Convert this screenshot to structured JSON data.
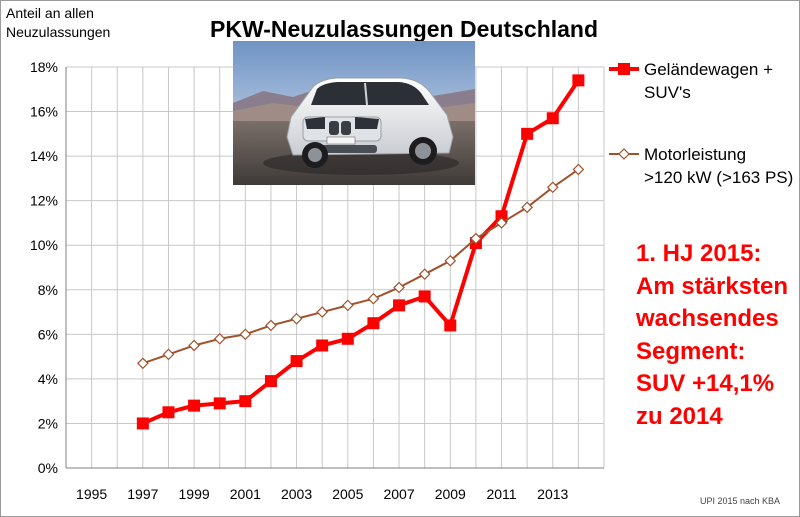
{
  "chart_data": {
    "type": "line",
    "title": "PKW-Neuzulassungen Deutschland",
    "ylabel": "Anteil an allen\nNeuzulassungen",
    "xlabel": "",
    "ylim": [
      0,
      18
    ],
    "y_ticks": [
      "0%",
      "2%",
      "4%",
      "6%",
      "8%",
      "10%",
      "12%",
      "14%",
      "16%",
      "18%"
    ],
    "y_tick_values": [
      0,
      2,
      4,
      6,
      8,
      10,
      12,
      14,
      16,
      18
    ],
    "xlim": [
      1994,
      2015
    ],
    "x_ticks": [
      "1995",
      "1997",
      "1999",
      "2001",
      "2003",
      "2005",
      "2007",
      "2009",
      "2011",
      "2013"
    ],
    "x_tick_values": [
      1995,
      1997,
      1999,
      2001,
      2003,
      2005,
      2007,
      2009,
      2011,
      2013
    ],
    "grid": true,
    "legend_position": "right",
    "series": [
      {
        "name": "Geländewagen +\nSUV's",
        "color": "#ff0000",
        "marker": "square",
        "x": [
          1997,
          1998,
          1999,
          2000,
          2001,
          2002,
          2003,
          2004,
          2005,
          2006,
          2007,
          2008,
          2009,
          2010,
          2011,
          2012,
          2013,
          2014
        ],
        "values": [
          2.0,
          2.5,
          2.8,
          2.9,
          3.0,
          3.9,
          4.8,
          5.5,
          5.8,
          6.5,
          7.3,
          7.7,
          6.4,
          10.1,
          11.3,
          15.0,
          15.7,
          17.4
        ]
      },
      {
        "name": "Motorleistung\n>120 kW (>163 PS)",
        "color": "#a0522d",
        "marker": "diamond",
        "x": [
          1997,
          1998,
          1999,
          2000,
          2001,
          2002,
          2003,
          2004,
          2005,
          2006,
          2007,
          2008,
          2009,
          2010,
          2011,
          2012,
          2013,
          2014
        ],
        "values": [
          4.7,
          5.1,
          5.5,
          5.8,
          6.0,
          6.4,
          6.7,
          7.0,
          7.3,
          7.6,
          8.1,
          8.7,
          9.3,
          10.3,
          11.0,
          11.7,
          12.6,
          13.4
        ]
      }
    ],
    "annotation": {
      "text": "1. HJ 2015:\nAm stärksten\nwachsendes\nSegment:\nSUV +14,1%\nzu 2014",
      "color": "#ff0000"
    },
    "source": "UPI 2015 nach KBA"
  }
}
